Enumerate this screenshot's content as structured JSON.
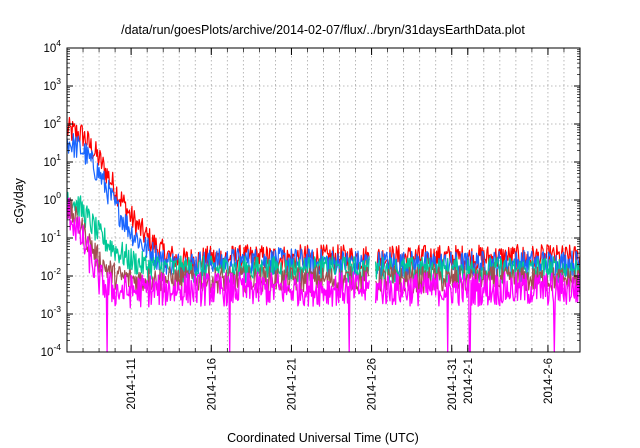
{
  "chart_data": {
    "type": "line",
    "title": "/data/run/goesPlots/archive/2014-02-07/flux/../bryn/31daysEarthData.plot",
    "xlabel": "Coordinated Universal Time (UTC)",
    "ylabel": "cGy/day",
    "x_scale": "time",
    "xlim": [
      "2014-01-07",
      "2014-02-08"
    ],
    "y_scale": "log",
    "ylim": [
      0.0001,
      10000
    ],
    "y_ticks": [
      {
        "value": 0.0001,
        "base": "10",
        "exp": "-4"
      },
      {
        "value": 0.001,
        "base": "10",
        "exp": "-3"
      },
      {
        "value": 0.01,
        "base": "10",
        "exp": "-2"
      },
      {
        "value": 0.1,
        "base": "10",
        "exp": "-1"
      },
      {
        "value": 1,
        "base": "10",
        "exp": "0"
      },
      {
        "value": 10,
        "base": "10",
        "exp": "1"
      },
      {
        "value": 100,
        "base": "10",
        "exp": "2"
      },
      {
        "value": 1000,
        "base": "10",
        "exp": "3"
      },
      {
        "value": 10000,
        "base": "10",
        "exp": "4"
      }
    ],
    "x_ticks": [
      {
        "date": "2014-01-11",
        "label": "2014-1-11"
      },
      {
        "date": "2014-01-16",
        "label": "2014-1-16"
      },
      {
        "date": "2014-01-21",
        "label": "2014-1-21"
      },
      {
        "date": "2014-01-26",
        "label": "2014-1-26"
      },
      {
        "date": "2014-01-31",
        "label": "2014-1-31"
      },
      {
        "date": "2014-02-01",
        "label": "2014-2-1"
      },
      {
        "date": "2014-02-06",
        "label": "2014-2-6"
      }
    ],
    "grid": true,
    "legend": "none",
    "series": [
      {
        "color": "#ff0000",
        "points": [
          [
            "2014-01-07",
            70
          ],
          [
            "2014-01-08",
            50
          ],
          [
            "2014-01-09",
            12
          ],
          [
            "2014-01-10",
            2
          ],
          [
            "2014-01-11",
            0.35
          ],
          [
            "2014-01-12",
            0.1
          ],
          [
            "2014-01-13",
            0.04
          ],
          [
            "2014-01-14",
            0.025
          ],
          [
            "2014-01-17",
            0.03
          ],
          [
            "2014-01-21",
            0.03
          ],
          [
            "2014-01-25",
            0.03
          ],
          [
            "2014-01-26",
            0.03
          ],
          [
            "2014-01-31",
            0.03
          ],
          [
            "2014-02-04",
            0.03
          ],
          [
            "2014-02-08",
            0.03
          ]
        ]
      },
      {
        "color": "#1a66ff",
        "points": [
          [
            "2014-01-07",
            35
          ],
          [
            "2014-01-08",
            20
          ],
          [
            "2014-01-09",
            5
          ],
          [
            "2014-01-10",
            0.7
          ],
          [
            "2014-01-11",
            0.15
          ],
          [
            "2014-01-12",
            0.05
          ],
          [
            "2014-01-13",
            0.025
          ],
          [
            "2014-01-14",
            0.02
          ],
          [
            "2014-01-17",
            0.025
          ],
          [
            "2014-01-21",
            0.025
          ],
          [
            "2014-01-25",
            0.022
          ],
          [
            "2014-01-26",
            0.022
          ],
          [
            "2014-01-31",
            0.02
          ],
          [
            "2014-02-04",
            0.022
          ],
          [
            "2014-02-08",
            0.022
          ]
        ]
      },
      {
        "color": "#00c896",
        "points": [
          [
            "2014-01-07",
            1.5
          ],
          [
            "2014-01-08",
            0.5
          ],
          [
            "2014-01-09",
            0.12
          ],
          [
            "2014-01-10",
            0.05
          ],
          [
            "2014-01-11",
            0.025
          ],
          [
            "2014-01-12",
            0.018
          ],
          [
            "2014-01-14",
            0.015
          ],
          [
            "2014-01-21",
            0.015
          ],
          [
            "2014-01-26",
            0.015
          ],
          [
            "2014-01-31",
            0.014
          ],
          [
            "2014-02-08",
            0.015
          ]
        ]
      },
      {
        "color": "#a05050",
        "points": [
          [
            "2014-01-07",
            0.7
          ],
          [
            "2014-01-08",
            0.15
          ],
          [
            "2014-01-09",
            0.025
          ],
          [
            "2014-01-10",
            0.01
          ],
          [
            "2014-01-11",
            0.008
          ],
          [
            "2014-01-14",
            0.008
          ],
          [
            "2014-01-21",
            0.008
          ],
          [
            "2014-01-26",
            0.008
          ],
          [
            "2014-01-31",
            0.008
          ],
          [
            "2014-02-08",
            0.008
          ]
        ]
      },
      {
        "color": "#ff00ff",
        "points": [
          [
            "2014-01-07",
            0.6
          ],
          [
            "2014-01-08",
            0.08
          ],
          [
            "2014-01-09",
            0.008
          ],
          [
            "2014-01-10",
            0.004
          ],
          [
            "2014-01-11",
            0.004
          ],
          [
            "2014-01-14",
            0.0045
          ],
          [
            "2014-01-21",
            0.0045
          ],
          [
            "2014-01-26",
            0.0045
          ],
          [
            "2014-01-31",
            0.0045
          ],
          [
            "2014-02-08",
            0.0045
          ]
        ]
      }
    ]
  }
}
